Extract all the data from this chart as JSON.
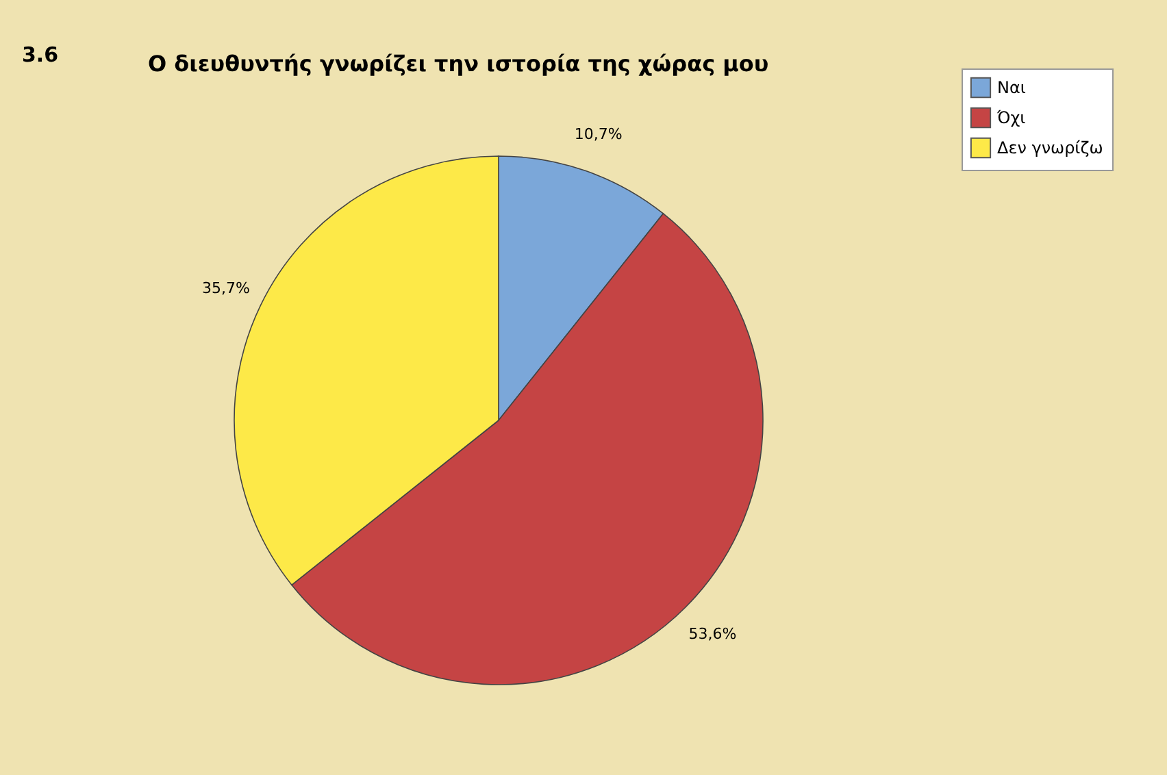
{
  "chart_data": {
    "type": "pie",
    "title": "Ο διευθυντής γνωρίζει την ιστορία της χώρας μου",
    "annotations": [
      "3.6"
    ],
    "categories": [
      "Ναι",
      "Όχι",
      "Δεν γνωρίζω"
    ],
    "values": [
      10.7,
      53.6,
      35.7
    ],
    "colors": [
      "#7ba7d9",
      "#c54444",
      "#fde948"
    ],
    "value_labels": [
      "10,7%",
      "53,6%",
      "35,7%"
    ],
    "legend": "top right"
  }
}
